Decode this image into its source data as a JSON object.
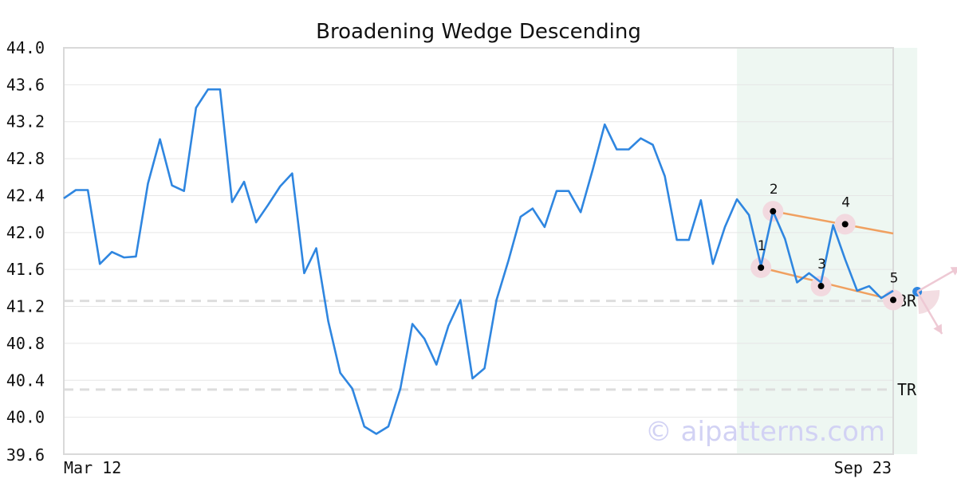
{
  "chart_data": {
    "type": "line",
    "title": "Broadening Wedge Descending",
    "xlabel": "",
    "ylabel": "",
    "ylim": [
      39.6,
      44.0
    ],
    "yticks": [
      "44.0",
      "43.6",
      "43.2",
      "42.8",
      "42.4",
      "42.0",
      "41.6",
      "41.2",
      "40.8",
      "40.4",
      "40.0",
      "39.6"
    ],
    "x_start_label": "Mar 12",
    "x_end_label": "Sep 23",
    "grid": true,
    "series": [
      {
        "color": "#2f86e0",
        "values": [
          42.37,
          42.46,
          42.46,
          41.66,
          41.79,
          41.73,
          41.74,
          42.53,
          43.01,
          42.51,
          42.45,
          43.35,
          43.55,
          43.55,
          42.33,
          42.55,
          42.11,
          42.3,
          42.5,
          42.64,
          41.56,
          41.83,
          41.04,
          40.48,
          40.31,
          39.9,
          39.82,
          39.9,
          40.31,
          41.01,
          40.85,
          40.57,
          40.99,
          41.27,
          40.42,
          40.53,
          41.27,
          41.7,
          42.17,
          42.26,
          42.06,
          42.45,
          42.45,
          42.22,
          42.68,
          43.17,
          42.9,
          42.9,
          43.02,
          42.95,
          42.61,
          41.92,
          41.92,
          42.35,
          41.66,
          42.06,
          42.36,
          42.19,
          41.64,
          42.23,
          41.93,
          41.46,
          41.56,
          41.46,
          42.08,
          41.71,
          41.37,
          41.42,
          41.29,
          41.37
        ]
      }
    ],
    "pattern": {
      "name": "Broadening Wedge Descending",
      "highlight_index_range": [
        56,
        71
      ],
      "points": [
        {
          "label": "1",
          "index": 58,
          "value": 41.62
        },
        {
          "label": "2",
          "index": 59,
          "value": 42.23
        },
        {
          "label": "3",
          "index": 63,
          "value": 41.42
        },
        {
          "label": "4",
          "index": 65,
          "value": 42.09
        },
        {
          "label": "5",
          "index": 69,
          "value": 41.27
        }
      ],
      "upper_line": {
        "from_index": 59,
        "from_value": 42.23,
        "to_index": 69,
        "to_value": 41.99
      },
      "lower_line": {
        "from_index": 58,
        "from_value": 41.62,
        "to_index": 69,
        "to_value": 41.27
      },
      "current_point": {
        "index": 71,
        "value": 41.36
      }
    },
    "reference_lines": [
      {
        "label": "BR",
        "value": 41.26
      },
      {
        "label": "TR",
        "value": 40.3
      }
    ],
    "colors": {
      "price_line": "#2f86e0",
      "wedge_lines": "#f0a060",
      "highlight_zone": "#eef7f2",
      "marker_halo": "#f2d9df",
      "reference_lines": "#dddddd"
    }
  },
  "watermark": "© aipatterns.com"
}
